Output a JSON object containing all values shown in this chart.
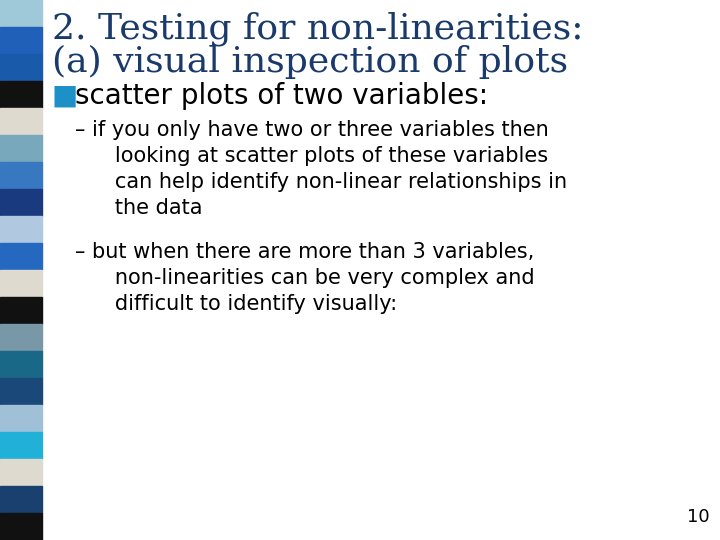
{
  "title_line1": "2. Testing for non-linearities:",
  "title_line2": "(a) visual inspection of plots",
  "bullet_header_square": "■",
  "bullet_header_text": " scatter plots of two variables:",
  "bullet_color": "#1E90C8",
  "body_text_color": "#000000",
  "title_color": "#1a3a6b",
  "background_color": "#ffffff",
  "slide_number": "10",
  "bullet1_lines": [
    "– if you only have two or three variables then",
    "   looking at scatter plots of these variables",
    "   can help identify non-linear relationships in",
    "   the data"
  ],
  "bullet2_lines": [
    "– but when there are more than 3 variables,",
    "   non-linearities can be very complex and",
    "   difficult to identify visually:"
  ],
  "left_bar_colors": [
    "#9fc8d8",
    "#2060b8",
    "#1a5aaa",
    "#111111",
    "#dedad0",
    "#78a8bc",
    "#3878c0",
    "#1a3a80",
    "#b0c8e0",
    "#2468c0",
    "#dedad0",
    "#111111",
    "#7898a8",
    "#1a6888",
    "#1a4878",
    "#a0c0d8",
    "#20b0d8",
    "#dedad0",
    "#1a4070",
    "#111111"
  ],
  "title_fontsize": 26,
  "bullet_header_fontsize": 20,
  "body_fontsize": 15
}
